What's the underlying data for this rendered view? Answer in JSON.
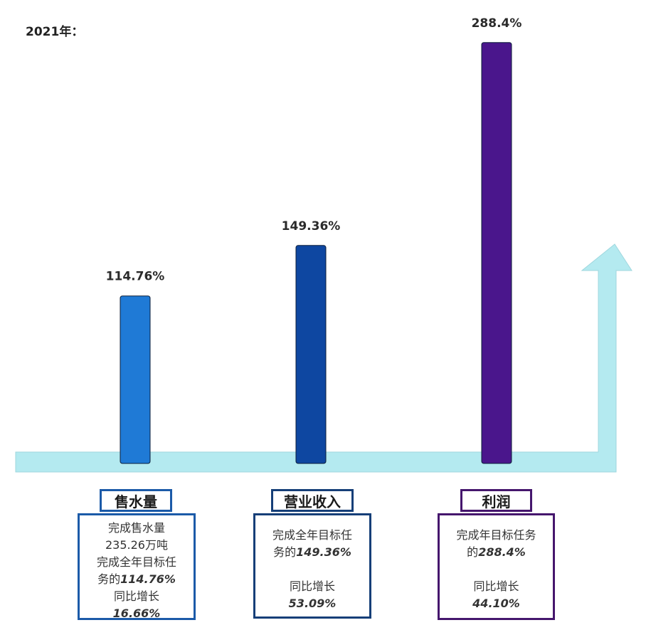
{
  "header": {
    "year_label": "2021年："
  },
  "chart_data": {
    "type": "bar",
    "categories": [
      "售水量",
      "营业收入",
      "利润"
    ],
    "values": [
      114.76,
      149.36,
      288.4
    ],
    "value_labels": [
      "114.76%",
      "149.36%",
      "288.4%"
    ],
    "colors": [
      "#1f7ad6",
      "#0e47a1",
      "#4a168c"
    ],
    "ylim": [
      0,
      320
    ],
    "grid": false
  },
  "cards": [
    {
      "title": "售水量",
      "color": "#1b5aa8",
      "line1": "完成售水量",
      "line2": "235.26万吨",
      "line3": "完成全年目标任",
      "line4_prefix": "务的",
      "line4_value": "114.76%",
      "line5": "同比增长",
      "line6_value": "16.66%"
    },
    {
      "title": "营业收入",
      "color": "#163f78",
      "line1": "完成全年目标任",
      "line2_prefix": "务的",
      "line2_value": "149.36%",
      "line3": "同比增长",
      "line4_value": "53.09%"
    },
    {
      "title": "利润",
      "color": "#45166d",
      "line1": "完成年目标任务",
      "line2_prefix": "的",
      "line2_value": "288.4%",
      "line3": "同比增长",
      "line4_value": "44.10%"
    }
  ]
}
